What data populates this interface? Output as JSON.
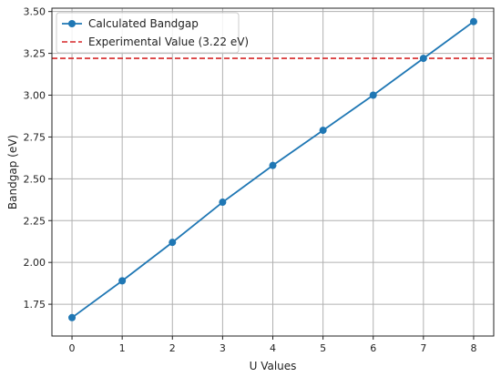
{
  "chart_data": {
    "type": "line",
    "title": "",
    "xlabel": "U Values",
    "ylabel": "Bandgap (eV)",
    "x": [
      0,
      1,
      2,
      3,
      4,
      5,
      6,
      7,
      8
    ],
    "series": [
      {
        "name": "Calculated Bandgap",
        "values": [
          1.67,
          1.89,
          2.12,
          2.36,
          2.58,
          2.79,
          3.0,
          3.22,
          3.44
        ],
        "color": "#1f77b4",
        "marker": "circle"
      }
    ],
    "reference_lines": [
      {
        "name": "Experimental Value (3.22 eV)",
        "y": 3.22,
        "color": "#d62728",
        "style": "dashed"
      }
    ],
    "xlim": [
      -0.4,
      8.4
    ],
    "ylim": [
      1.56,
      3.52
    ],
    "xticks": [
      "0",
      "1",
      "2",
      "3",
      "4",
      "5",
      "6",
      "7",
      "8"
    ],
    "yticks": [
      "1.75",
      "2.00",
      "2.25",
      "2.50",
      "2.75",
      "3.00",
      "3.25",
      "3.50"
    ],
    "grid": true,
    "legend_position": "top-left"
  }
}
